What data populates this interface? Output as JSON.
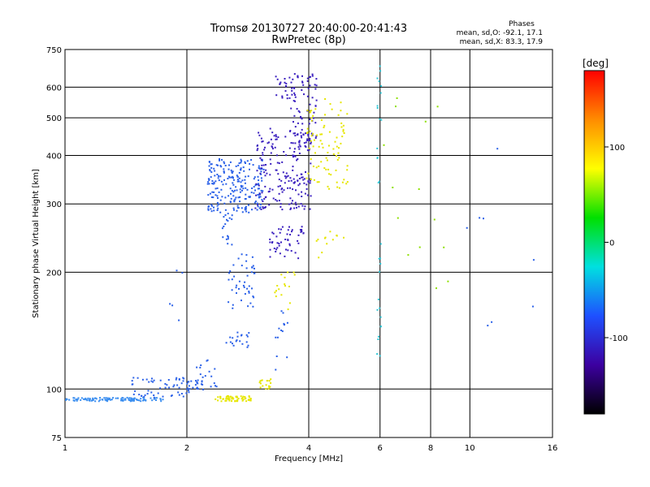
{
  "chart_data": {
    "type": "scatter",
    "title": "Tromsø 20130727 20:40:00-20:41:43",
    "subtitle": "RwPretec (8p)",
    "xlabel": "Frequency [MHz]",
    "ylabel": "Stationary phase Virtual Height [km]",
    "x_scale": "log",
    "y_scale": "log",
    "xlim": [
      1,
      16
    ],
    "ylim": [
      75,
      750
    ],
    "x_ticks": [
      "1",
      "2",
      "4",
      "6",
      "8",
      "10",
      "16"
    ],
    "y_ticks": [
      "75",
      "100",
      "200",
      "300",
      "400",
      "500",
      "600",
      "750"
    ],
    "x_tick_values": [
      1,
      2,
      4,
      6,
      8,
      10,
      16
    ],
    "y_tick_values": [
      75,
      100,
      200,
      300,
      400,
      500,
      600,
      750
    ],
    "grid": true,
    "phase_stats": {
      "heading": "Phases",
      "line_o": "mean, sd,O: -92.1, 17.1",
      "line_x": "mean, sd,X:  83.3, 17.9"
    },
    "colorbar": {
      "label": "[deg]",
      "min": -180,
      "max": 180,
      "ticks": [
        "100",
        "0",
        "-100"
      ],
      "tick_values": [
        100,
        0,
        -100
      ],
      "stops": [
        "#ff0000",
        "#ff8c00",
        "#ffff00",
        "#00e000",
        "#00e0e0",
        "#1e50ff",
        "#3c00a0",
        "#000000"
      ]
    },
    "point_colors": {
      "o_mode": "#2a60e8",
      "o_mode_dark": "#3a1fbf",
      "o_mode_light": "#3a8ef0",
      "x_mode": "#e6e600",
      "x_mode_orange": "#f0a000",
      "x_mode_green": "#8ee000",
      "cyan": "#30c8d8"
    },
    "traces": [
      {
        "name": "",
        "mode": "O",
        "x_range": [
          1.0,
          1.75
        ],
        "y_range": [
          93,
          95
        ],
        "n": 110,
        "color": "o_mode_light"
      },
      {
        "name": "",
        "mode": "O",
        "x_range": [
          1.45,
          2.2
        ],
        "y_range": [
          95,
          107
        ],
        "n": 70,
        "color": "o_mode"
      },
      {
        "name": "",
        "mode": "O",
        "x_range": [
          2.1,
          2.4
        ],
        "y_range": [
          100,
          120
        ],
        "n": 22,
        "color": "o_mode"
      },
      {
        "name": "",
        "mode": "X",
        "x_range": [
          2.35,
          2.9
        ],
        "y_range": [
          93,
          96
        ],
        "n": 60,
        "color": "x_mode"
      },
      {
        "name": "",
        "mode": "X",
        "x_range": [
          3.0,
          3.25
        ],
        "y_range": [
          100,
          106
        ],
        "n": 18,
        "color": "x_mode"
      },
      {
        "name": "",
        "mode": "O",
        "x_range": [
          2.5,
          2.85
        ],
        "y_range": [
          128,
          140
        ],
        "n": 20,
        "color": "o_mode"
      },
      {
        "name": "",
        "mode": "O",
        "x_range": [
          2.5,
          2.95
        ],
        "y_range": [
          160,
          225
        ],
        "n": 45,
        "color": "o_mode"
      },
      {
        "name": "",
        "mode": "O",
        "x_range": [
          2.45,
          2.6
        ],
        "y_range": [
          235,
          290
        ],
        "n": 18,
        "color": "o_mode"
      },
      {
        "name": "",
        "mode": "O",
        "x_range": [
          2.25,
          3.1
        ],
        "y_range": [
          285,
          395
        ],
        "n": 230,
        "color": "o_mode"
      },
      {
        "name": "",
        "mode": "O",
        "x_range": [
          2.95,
          4.05
        ],
        "y_range": [
          290,
          470
        ],
        "n": 190,
        "color": "o_mode_dark"
      },
      {
        "name": "",
        "mode": "O",
        "x_range": [
          3.6,
          4.2
        ],
        "y_range": [
          430,
          650
        ],
        "n": 80,
        "color": "o_mode_dark"
      },
      {
        "name": "",
        "mode": "O",
        "x_range": [
          3.3,
          3.7
        ],
        "y_range": [
          560,
          640
        ],
        "n": 22,
        "color": "o_mode_dark"
      },
      {
        "name": "",
        "mode": "O",
        "x_range": [
          3.2,
          3.9
        ],
        "y_range": [
          215,
          265
        ],
        "n": 50,
        "color": "o_mode_dark"
      },
      {
        "name": "",
        "mode": "X",
        "x_range": [
          3.95,
          5.0
        ],
        "y_range": [
          325,
          560
        ],
        "n": 90,
        "color": "x_mode"
      },
      {
        "name": "",
        "mode": "X",
        "x_range": [
          4.1,
          4.9
        ],
        "y_range": [
          215,
          255
        ],
        "n": 12,
        "color": "x_mode"
      },
      {
        "name": "",
        "mode": "X",
        "x_range": [
          3.3,
          3.8
        ],
        "y_range": [
          160,
          200
        ],
        "n": 16,
        "color": "x_mode"
      },
      {
        "name": "",
        "mode": "O",
        "x_range": [
          3.3,
          3.55
        ],
        "y_range": [
          112,
          160
        ],
        "n": 14,
        "color": "o_mode"
      },
      {
        "name": "",
        "mode": "O",
        "x_range": [
          1.8,
          2.0
        ],
        "y_range": [
          150,
          205
        ],
        "n": 5,
        "color": "o_mode"
      },
      {
        "name": "",
        "mode": "O",
        "x_range": [
          5.9,
          6.05
        ],
        "y_range": [
          110,
          680
        ],
        "n": 30,
        "color": "cyan"
      },
      {
        "name": "",
        "mode": "X",
        "x_range": [
          6.1,
          9.0
        ],
        "y_range": [
          110,
          600
        ],
        "n": 14,
        "color": "x_mode_green"
      },
      {
        "name": "",
        "mode": "O",
        "x_range": [
          9.5,
          15.0
        ],
        "y_range": [
          140,
          520
        ],
        "n": 8,
        "color": "o_mode"
      }
    ]
  }
}
